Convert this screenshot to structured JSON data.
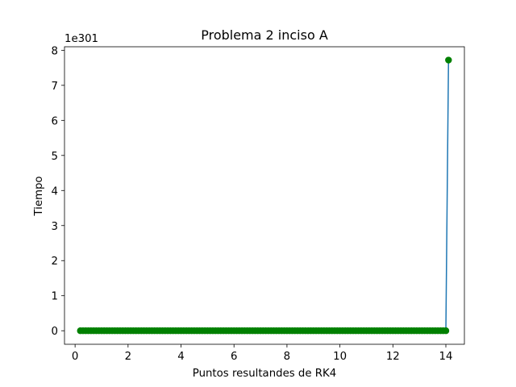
{
  "chart_data": {
    "type": "line",
    "title": "Problema 2 inciso A",
    "xlabel": "Puntos resultandes de RK4",
    "ylabel": "Tiempo",
    "y_offset_label": "1e301",
    "xlim": [
      -0.4,
      14.7
    ],
    "ylim": [
      -0.386,
      8.1
    ],
    "xticks": [
      0,
      2,
      4,
      6,
      8,
      10,
      12,
      14
    ],
    "yticks": [
      0,
      1,
      2,
      3,
      4,
      5,
      6,
      7,
      8
    ],
    "xticklabels": [
      "0",
      "2",
      "4",
      "6",
      "8",
      "10",
      "12",
      "14"
    ],
    "yticklabels": [
      "0",
      "1",
      "2",
      "3",
      "4",
      "5",
      "6",
      "7",
      "8"
    ],
    "grid": false,
    "series": [
      {
        "line_color": "#1f77b4",
        "marker_color": "#008000",
        "marker": "circle",
        "x_start": 0.2,
        "x_step": 0.1,
        "y_flat": 0,
        "last_point": {
          "x": 14.1,
          "y": 7.72
        }
      }
    ]
  }
}
